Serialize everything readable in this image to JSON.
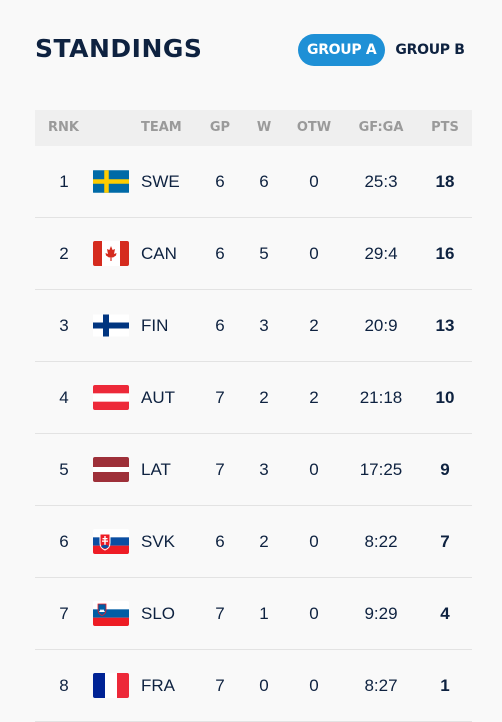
{
  "header": {
    "title": "STANDINGS",
    "tabs": [
      {
        "label": "GROUP A",
        "active": true
      },
      {
        "label": "GROUP B",
        "active": false
      }
    ]
  },
  "colors": {
    "accent": "#1e90d6",
    "text": "#0e2240",
    "header_bg": "#efefef"
  },
  "table": {
    "columns": [
      "RNK",
      "TEAM",
      "GP",
      "W",
      "OTW",
      "GF:GA",
      "PTS"
    ],
    "rows": [
      {
        "rnk": "1",
        "flag": "sweden-flag-icon",
        "team": "SWE",
        "gp": "6",
        "w": "6",
        "otw": "0",
        "gfga": "25:3",
        "pts": "18"
      },
      {
        "rnk": "2",
        "flag": "canada-flag-icon",
        "team": "CAN",
        "gp": "6",
        "w": "5",
        "otw": "0",
        "gfga": "29:4",
        "pts": "16"
      },
      {
        "rnk": "3",
        "flag": "finland-flag-icon",
        "team": "FIN",
        "gp": "6",
        "w": "3",
        "otw": "2",
        "gfga": "20:9",
        "pts": "13"
      },
      {
        "rnk": "4",
        "flag": "austria-flag-icon",
        "team": "AUT",
        "gp": "7",
        "w": "2",
        "otw": "2",
        "gfga": "21:18",
        "pts": "10"
      },
      {
        "rnk": "5",
        "flag": "latvia-flag-icon",
        "team": "LAT",
        "gp": "7",
        "w": "3",
        "otw": "0",
        "gfga": "17:25",
        "pts": "9"
      },
      {
        "rnk": "6",
        "flag": "slovakia-flag-icon",
        "team": "SVK",
        "gp": "6",
        "w": "2",
        "otw": "0",
        "gfga": "8:22",
        "pts": "7"
      },
      {
        "rnk": "7",
        "flag": "slovenia-flag-icon",
        "team": "SLO",
        "gp": "7",
        "w": "1",
        "otw": "0",
        "gfga": "9:29",
        "pts": "4"
      },
      {
        "rnk": "8",
        "flag": "france-flag-icon",
        "team": "FRA",
        "gp": "7",
        "w": "0",
        "otw": "0",
        "gfga": "8:27",
        "pts": "1"
      }
    ]
  }
}
